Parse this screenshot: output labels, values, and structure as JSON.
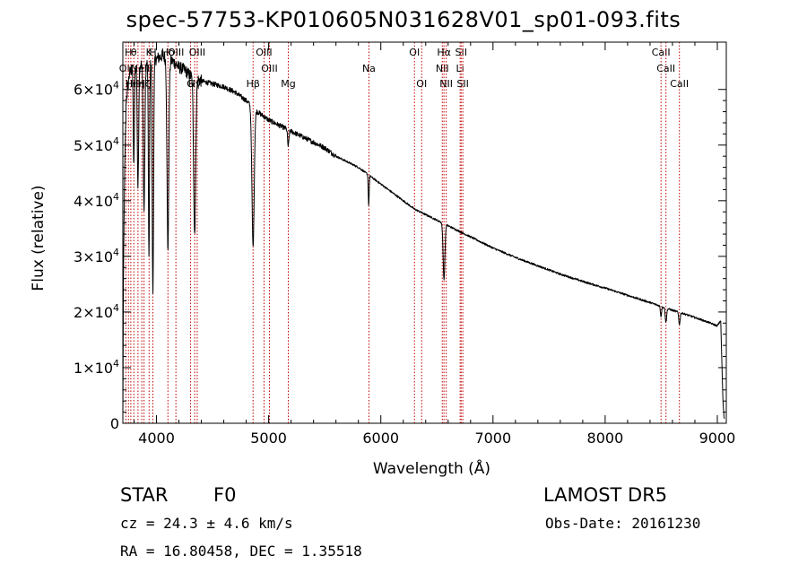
{
  "chart_data": {
    "type": "line",
    "title": "spec-57753-KP010605N031628V01_sp01-093.fits",
    "xlabel": "Wavelength (Å)",
    "ylabel": "Flux (relative)",
    "xlim": [
      3700,
      9080
    ],
    "ylim": [
      0,
      68500
    ],
    "grid": false,
    "x_ticks": [
      4000,
      5000,
      6000,
      7000,
      8000,
      9000
    ],
    "y_ticks": [
      {
        "value": 0,
        "mantissa": "0",
        "exp": ""
      },
      {
        "value": 10000,
        "mantissa": "1×10",
        "exp": "4"
      },
      {
        "value": 20000,
        "mantissa": "2×10",
        "exp": "4"
      },
      {
        "value": 30000,
        "mantissa": "3×10",
        "exp": "4"
      },
      {
        "value": 40000,
        "mantissa": "4×10",
        "exp": "4"
      },
      {
        "value": 50000,
        "mantissa": "5×10",
        "exp": "4"
      },
      {
        "value": 60000,
        "mantissa": "6×10",
        "exp": "4"
      }
    ],
    "continuum": [
      [
        3700,
        0
      ],
      [
        3705,
        25000
      ],
      [
        3715,
        44000
      ],
      [
        3730,
        58000
      ],
      [
        3760,
        63000
      ],
      [
        3800,
        64000
      ],
      [
        3850,
        64500
      ],
      [
        3900,
        64500
      ],
      [
        3950,
        65000
      ],
      [
        4000,
        65500
      ],
      [
        4050,
        66000
      ],
      [
        4100,
        65500
      ],
      [
        4150,
        65000
      ],
      [
        4200,
        64000
      ],
      [
        4250,
        63500
      ],
      [
        4300,
        62500
      ],
      [
        4400,
        61500
      ],
      [
        4500,
        61000
      ],
      [
        4600,
        60500
      ],
      [
        4700,
        59500
      ],
      [
        4800,
        58000
      ],
      [
        4900,
        56000
      ],
      [
        5000,
        54500
      ],
      [
        5100,
        53500
      ],
      [
        5200,
        52500
      ],
      [
        5300,
        51500
      ],
      [
        5400,
        50500
      ],
      [
        5500,
        49500
      ],
      [
        5600,
        48000
      ],
      [
        5700,
        47000
      ],
      [
        5800,
        46000
      ],
      [
        5900,
        44500
      ],
      [
        6000,
        43000
      ],
      [
        6100,
        41500
      ],
      [
        6200,
        40000
      ],
      [
        6300,
        38500
      ],
      [
        6400,
        37500
      ],
      [
        6500,
        36500
      ],
      [
        6600,
        35500
      ],
      [
        6700,
        34500
      ],
      [
        6800,
        33500
      ],
      [
        6900,
        32500
      ],
      [
        7000,
        31500
      ],
      [
        7200,
        29800
      ],
      [
        7400,
        28300
      ],
      [
        7600,
        26800
      ],
      [
        7800,
        25500
      ],
      [
        8000,
        24300
      ],
      [
        8200,
        23000
      ],
      [
        8400,
        21700
      ],
      [
        8500,
        21000
      ],
      [
        8600,
        20300
      ],
      [
        8700,
        19700
      ],
      [
        8800,
        19000
      ],
      [
        8900,
        18300
      ],
      [
        9000,
        17500
      ],
      [
        9030,
        18500
      ],
      [
        9050,
        4000
      ],
      [
        9060,
        1000
      ]
    ],
    "absorption_lines": [
      {
        "center": 3798,
        "depth": 18000,
        "width": 5
      },
      {
        "center": 3835,
        "depth": 22000,
        "width": 6
      },
      {
        "center": 3889,
        "depth": 26000,
        "width": 7
      },
      {
        "center": 3933,
        "depth": 35000,
        "width": 5
      },
      {
        "center": 3968,
        "depth": 42000,
        "width": 6
      },
      {
        "center": 4102,
        "depth": 34000,
        "width": 8
      },
      {
        "center": 4340,
        "depth": 28000,
        "width": 9
      },
      {
        "center": 4861,
        "depth": 25000,
        "width": 10
      },
      {
        "center": 5175,
        "depth": 3000,
        "width": 6
      },
      {
        "center": 5892,
        "depth": 5500,
        "width": 4
      },
      {
        "center": 6563,
        "depth": 10000,
        "width": 8
      },
      {
        "center": 8498,
        "depth": 1800,
        "width": 5
      },
      {
        "center": 8542,
        "depth": 2500,
        "width": 6
      },
      {
        "center": 8662,
        "depth": 2200,
        "width": 6
      }
    ],
    "line_markers": [
      {
        "wavelength": 3727,
        "label": "OII",
        "row": 1
      },
      {
        "wavelength": 3750,
        "label": "H",
        "row": 0
      },
      {
        "wavelength": 3798,
        "label": "θ",
        "row": 0
      },
      {
        "wavelength": 3771,
        "label": "Hι",
        "row": 2
      },
      {
        "wavelength": 3835,
        "label": "Hη",
        "row": 2
      },
      {
        "wavelength": 3869,
        "label": "NeIII",
        "row": 1
      },
      {
        "wavelength": 3889,
        "label": "Hζ",
        "row": 2
      },
      {
        "wavelength": 3934,
        "label": "K",
        "row": 0
      },
      {
        "wavelength": 3968,
        "label": "H",
        "row": 0
      },
      {
        "wavelength": 4102,
        "label": "Hδ",
        "row": 0
      },
      {
        "wavelength": 4173,
        "label": "OIII",
        "row": 0
      },
      {
        "wavelength": 4304,
        "label": "G",
        "row": 2
      },
      {
        "wavelength": 4340,
        "label": "Hγ",
        "row": 2
      },
      {
        "wavelength": 4363,
        "label": "OIII",
        "row": 0
      },
      {
        "wavelength": 4861,
        "label": "Hβ",
        "row": 2
      },
      {
        "wavelength": 4959,
        "label": "OIII",
        "row": 0
      },
      {
        "wavelength": 5007,
        "label": "OIII",
        "row": 1
      },
      {
        "wavelength": 5175,
        "label": "Mg",
        "row": 2
      },
      {
        "wavelength": 5894,
        "label": "Na",
        "row": 1
      },
      {
        "wavelength": 6300,
        "label": "OI",
        "row": 0
      },
      {
        "wavelength": 6364,
        "label": "OI",
        "row": 2
      },
      {
        "wavelength": 6548,
        "label": "NII",
        "row": 1
      },
      {
        "wavelength": 6563,
        "label": "Hα",
        "row": 0
      },
      {
        "wavelength": 6583,
        "label": "NII",
        "row": 2
      },
      {
        "wavelength": 6707,
        "label": "Li",
        "row": 1
      },
      {
        "wavelength": 6716,
        "label": "SII",
        "row": 0
      },
      {
        "wavelength": 6731,
        "label": "SII",
        "row": 2
      },
      {
        "wavelength": 8498,
        "label": "CaII",
        "row": 0
      },
      {
        "wavelength": 8542,
        "label": "CaII",
        "row": 1
      },
      {
        "wavelength": 8662,
        "label": "CaII",
        "row": 2
      }
    ]
  },
  "info": {
    "object_class": "STAR",
    "subclass": "F0",
    "survey": "LAMOST  DR5",
    "redshift": "cz = 24.3 ± 4.6 km/s",
    "obs_date": "Obs-Date: 20161230",
    "coords": "RA =  16.80458, DEC =   1.35518"
  },
  "colors": {
    "spectrum": "#000000",
    "line_marker": "#c00000",
    "axes": "#000000",
    "background": "#ffffff"
  }
}
